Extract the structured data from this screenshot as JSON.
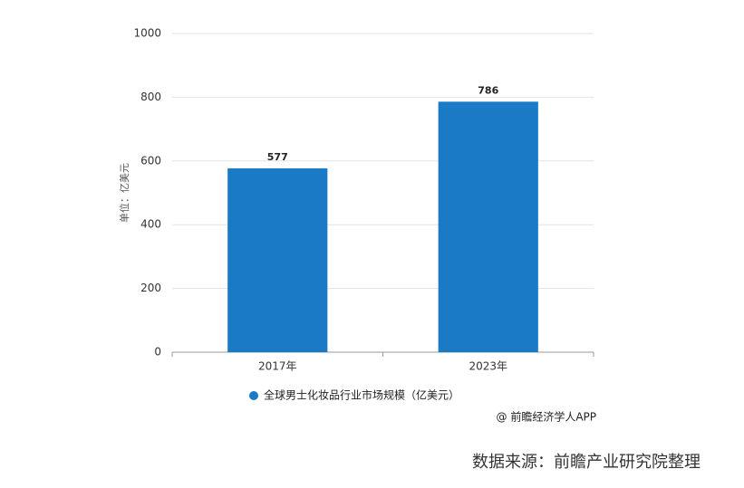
{
  "chart_data": {
    "type": "bar",
    "y_label": "单位：亿美元",
    "categories": [
      "2017年",
      "2023年"
    ],
    "values": [
      577,
      786
    ],
    "series_name": "全球男士化妆品行业市场规模（亿美元）",
    "color": "#1a7ac6",
    "ylim": [
      0,
      1000
    ],
    "yticks": [
      0,
      200,
      400,
      600,
      800,
      1000
    ],
    "grid": true,
    "annotation": "@ 前瞻经济学人APP",
    "source": "数据来源：前瞻产业研究院整理"
  }
}
